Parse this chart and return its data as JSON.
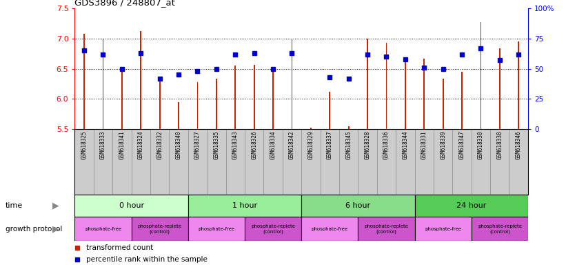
{
  "title": "GDS3896 / 248807_at",
  "samples": [
    "GSM618325",
    "GSM618333",
    "GSM618341",
    "GSM618324",
    "GSM618332",
    "GSM618340",
    "GSM618327",
    "GSM618335",
    "GSM618343",
    "GSM618326",
    "GSM618334",
    "GSM618342",
    "GSM618329",
    "GSM618337",
    "GSM618345",
    "GSM618328",
    "GSM618336",
    "GSM618344",
    "GSM618331",
    "GSM618339",
    "GSM618347",
    "GSM618330",
    "GSM618338",
    "GSM618346"
  ],
  "bar_values": [
    7.08,
    7.0,
    6.45,
    7.12,
    6.32,
    5.95,
    6.28,
    6.33,
    6.55,
    6.56,
    6.5,
    7.0,
    5.52,
    6.12,
    5.55,
    7.0,
    6.93,
    6.67,
    6.67,
    6.33,
    6.45,
    7.28,
    6.84,
    6.95
  ],
  "percentile_values": [
    65,
    62,
    50,
    63,
    42,
    45,
    48,
    50,
    62,
    63,
    50,
    63,
    null,
    43,
    42,
    62,
    60,
    58,
    51,
    50,
    62,
    67,
    57,
    62
  ],
  "ylim_left": [
    5.5,
    7.5
  ],
  "ylim_right": [
    0,
    100
  ],
  "yticks_left": [
    5.5,
    6.0,
    6.5,
    7.0,
    7.5
  ],
  "yticks_right": [
    0,
    25,
    50,
    75,
    100
  ],
  "ytick_labels_right": [
    "0",
    "25",
    "50",
    "75",
    "100%"
  ],
  "bar_color": "#cc2200",
  "percentile_color": "#0000cc",
  "bar_bottom": 5.5,
  "time_groups": [
    {
      "label": "0 hour",
      "start": 0,
      "end": 6,
      "color": "#ccffcc"
    },
    {
      "label": "1 hour",
      "start": 6,
      "end": 12,
      "color": "#99ee99"
    },
    {
      "label": "6 hour",
      "start": 12,
      "end": 18,
      "color": "#88dd88"
    },
    {
      "label": "24 hour",
      "start": 18,
      "end": 24,
      "color": "#55cc55"
    }
  ],
  "protocol_groups": [
    {
      "label": "phosphate-free",
      "start": 0,
      "end": 3,
      "color": "#ee88ee"
    },
    {
      "label": "phosphate-replete\n(control)",
      "start": 3,
      "end": 6,
      "color": "#cc55cc"
    },
    {
      "label": "phosphate-free",
      "start": 6,
      "end": 9,
      "color": "#ee88ee"
    },
    {
      "label": "phosphate-replete\n(control)",
      "start": 9,
      "end": 12,
      "color": "#cc55cc"
    },
    {
      "label": "phosphate-free",
      "start": 12,
      "end": 15,
      "color": "#ee88ee"
    },
    {
      "label": "phosphate-replete\n(control)",
      "start": 15,
      "end": 18,
      "color": "#cc55cc"
    },
    {
      "label": "phosphate-free",
      "start": 18,
      "end": 21,
      "color": "#ee88ee"
    },
    {
      "label": "phosphate-replete\n(control)",
      "start": 21,
      "end": 24,
      "color": "#cc55cc"
    }
  ],
  "hgrid_values": [
    6.0,
    6.5,
    7.0
  ],
  "bar_width": 0.07,
  "xtick_bg": "#cccccc",
  "fig_bg": "white"
}
